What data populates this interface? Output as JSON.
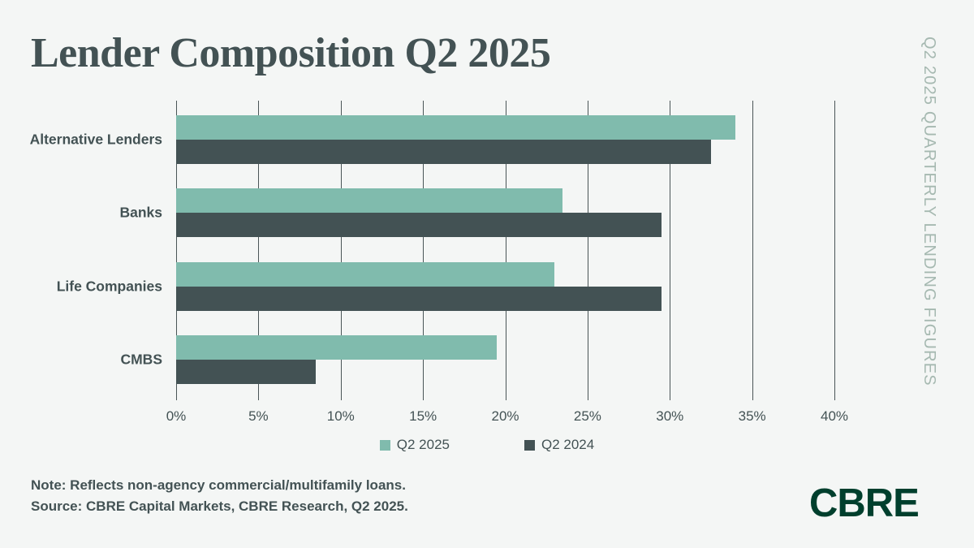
{
  "header": {
    "title": "Lender Composition Q2 2025"
  },
  "sidebar": {
    "vertical_label": "Q2 2025 QUARTERLY LENDING FIGURES"
  },
  "chart_data": {
    "type": "bar",
    "orientation": "horizontal",
    "title": "Lender Composition Q2 2025",
    "categories": [
      "Alternative Lenders",
      "Banks",
      "Life Companies",
      "CMBS"
    ],
    "series": [
      {
        "name": "Q2 2025",
        "color": "#80BBAD",
        "values": [
          34,
          23.5,
          23,
          19.5
        ]
      },
      {
        "name": "Q2 2024",
        "color": "#435254",
        "values": [
          32.5,
          29.5,
          29.5,
          8.5
        ]
      }
    ],
    "xlabel": "",
    "ylabel": "",
    "xlim": [
      0,
      40
    ],
    "x_tick_values": [
      0,
      5,
      10,
      15,
      20,
      25,
      30,
      35,
      40
    ],
    "x_tick_labels": [
      "0%",
      "5%",
      "10%",
      "15%",
      "20%",
      "25%",
      "30%",
      "35%",
      "40%"
    ],
    "grid": true,
    "legend_position": "bottom"
  },
  "footer": {
    "note": "Note: Reflects non-agency commercial/multifamily loans.",
    "source": "Source: CBRE Capital Markets, CBRE Research, Q2 2025.",
    "logo_text": "CBRE"
  },
  "colors": {
    "background": "#F4F6F5",
    "q2_2025_bar": "#80BBAD",
    "q2_2024_bar": "#435254",
    "gridline": "#4A5557",
    "text_dark": "#435254",
    "vertical_label": "#A6B9B1",
    "logo_green": "#003F2D"
  }
}
